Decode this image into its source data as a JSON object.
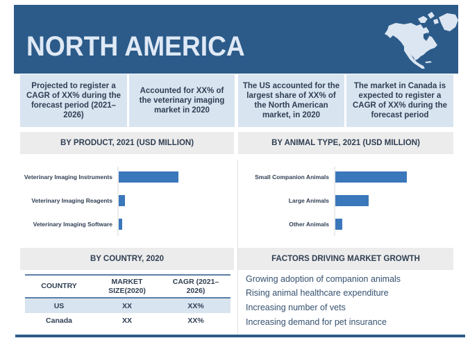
{
  "header": {
    "title": "NORTH AMERICA",
    "map_icon": "north-america-map-icon",
    "background_color": "#2c5b89",
    "title_color": "#dfe9f5"
  },
  "stats": [
    {
      "text": "Projected to register a CAGR of XX% during the forecast period (2021–2026)"
    },
    {
      "text": "Accounted for XX% of the veterinary imaging market in 2020"
    },
    {
      "text": "The US accounted for the largest share of XX% of the North American market, in 2020"
    },
    {
      "text": "The market in Canada is expected to register a CAGR of XX% during the forecast period"
    }
  ],
  "sections": {
    "product": "BY PRODUCT, 2021 (USD MILLION)",
    "animal": "BY ANIMAL TYPE, 2021 (USD MILLION)",
    "country": "BY COUNTRY, 2020",
    "factors": "FACTORS DRIVING MARKET GROWTH"
  },
  "chart_data": [
    {
      "type": "bar",
      "orientation": "horizontal",
      "title": "BY PRODUCT, 2021 (USD MILLION)",
      "categories": [
        "Veterinary Imaging Instruments",
        "Veterinary Imaging Reagents",
        "Veterinary Imaging Software"
      ],
      "values": [
        86,
        9,
        5
      ],
      "value_note": "relative bar lengths; no axis scale or data labels shown",
      "xlabel": "",
      "ylabel": "",
      "grid": false,
      "bar_color": "#3b77bb"
    },
    {
      "type": "bar",
      "orientation": "horizontal",
      "title": "BY ANIMAL TYPE, 2021 (USD MILLION)",
      "categories": [
        "Small Companion Animals",
        "Large Animals",
        "Other Animals"
      ],
      "values": [
        103,
        48,
        10
      ],
      "value_note": "relative bar lengths; no axis scale or data labels shown",
      "xlabel": "",
      "ylabel": "",
      "grid": false,
      "bar_color": "#3b77bb"
    }
  ],
  "country_table": {
    "headers": [
      "COUNTRY",
      "MARKET SIZE(2020)",
      "CAGR (2021–2026)"
    ],
    "rows": [
      [
        "US",
        "XX",
        "XX%"
      ],
      [
        "Canada",
        "XX",
        "XX%"
      ]
    ]
  },
  "factors": [
    "Growing adoption of companion animals",
    "Rising animal healthcare expenditure",
    "Increasing number of vets",
    "Increasing demand for pet insurance"
  ]
}
